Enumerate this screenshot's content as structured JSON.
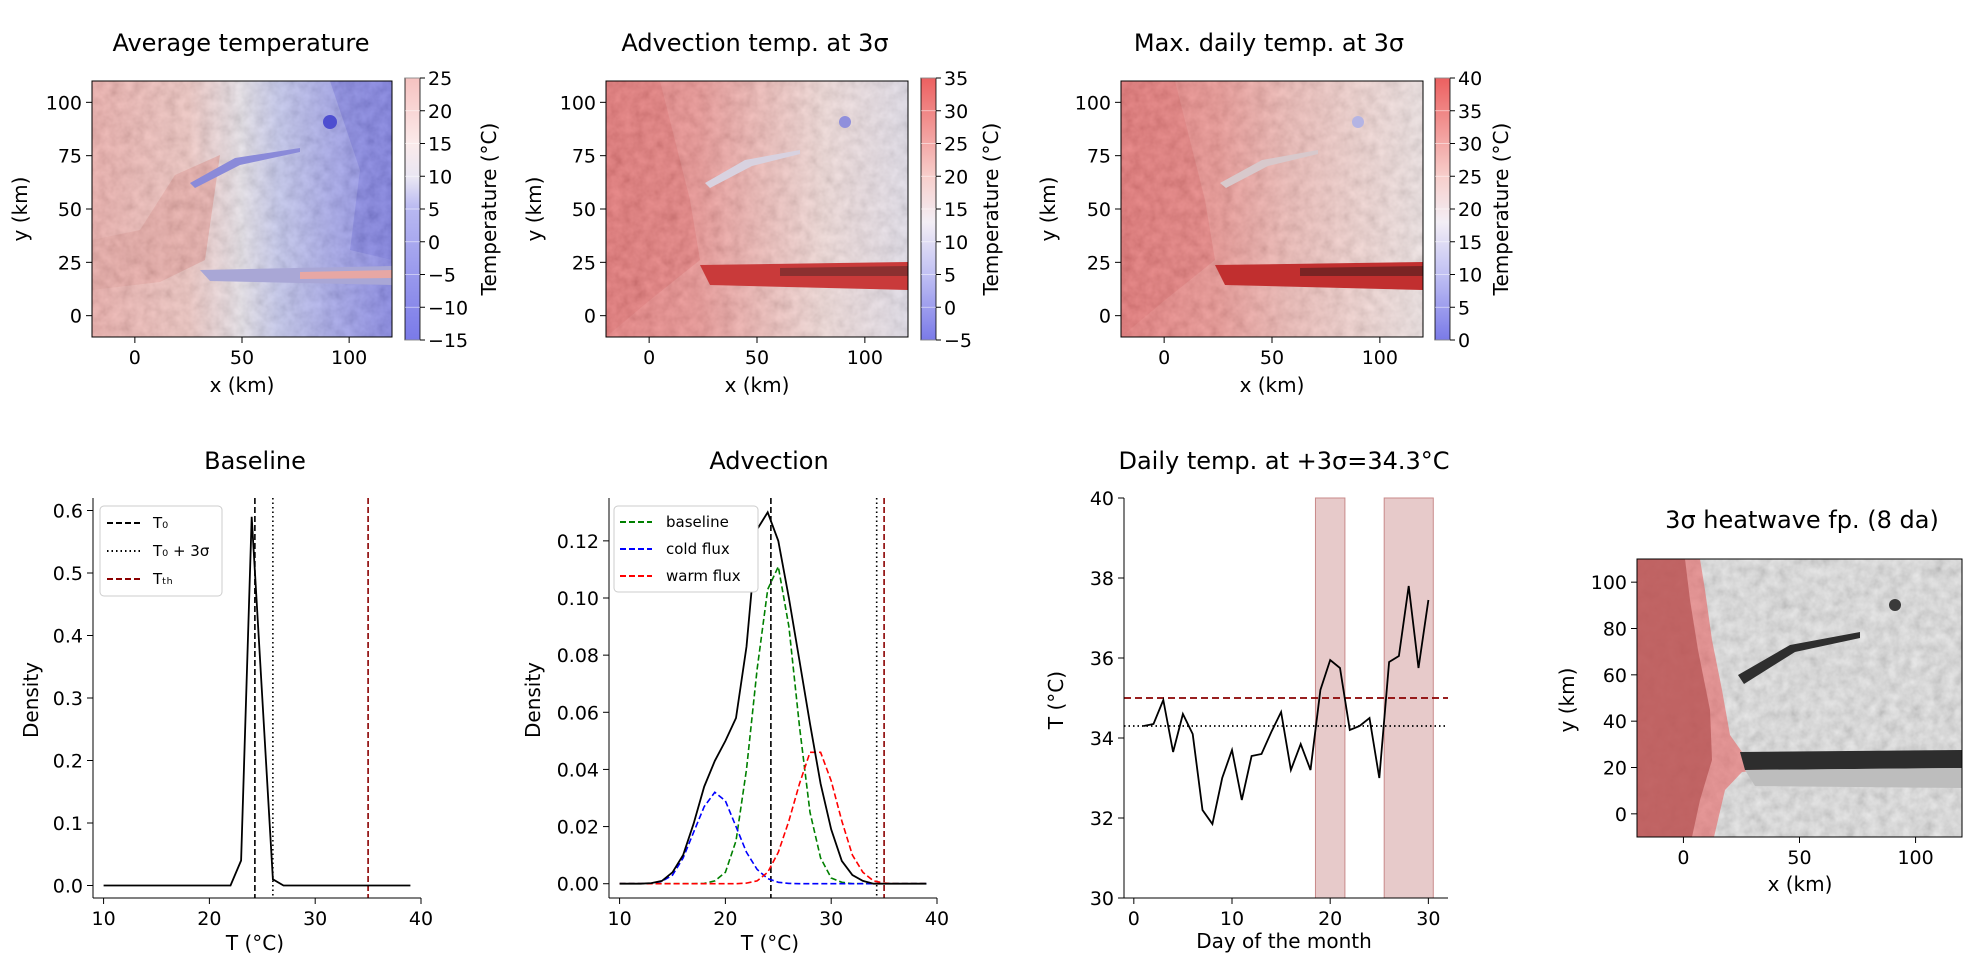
{
  "colors": {
    "terrain_dark": "#9a9a9a",
    "blue_strong": "#5555ee",
    "red_strong": "#ee5555",
    "baseline_green": "#008000",
    "cold_blue": "#0000ff",
    "warm_red": "#ff0000",
    "threshold_darkred": "#8b0000",
    "heatwave_band": "#c98a8a"
  },
  "chart_data": [
    {
      "id": "map1",
      "type": "heatmap",
      "title": "Average temperature",
      "xlabel": "x (km)",
      "ylabel": "y (km)",
      "xlim": [
        -20,
        120
      ],
      "ylim": [
        -10,
        110
      ],
      "xticks": [
        0,
        50,
        100
      ],
      "yticks": [
        0,
        25,
        50,
        75,
        100
      ],
      "colorbar": {
        "label": "Temperature (°C)",
        "min": -15,
        "max": 25,
        "ticks": [
          -15,
          -10,
          -5,
          0,
          5,
          10,
          15,
          20,
          25
        ]
      }
    },
    {
      "id": "map2",
      "type": "heatmap",
      "title": "Advection temp. at 3σ",
      "xlabel": "x (km)",
      "ylabel": "y (km)",
      "xlim": [
        -20,
        120
      ],
      "ylim": [
        -10,
        110
      ],
      "xticks": [
        0,
        50,
        100
      ],
      "yticks": [
        0,
        25,
        50,
        75,
        100
      ],
      "colorbar": {
        "label": "Temperature (°C)",
        "min": -5,
        "max": 35,
        "ticks": [
          -5,
          0,
          5,
          10,
          15,
          20,
          25,
          30,
          35
        ]
      }
    },
    {
      "id": "map3",
      "type": "heatmap",
      "title": "Max. daily temp. at 3σ",
      "xlabel": "x (km)",
      "ylabel": "y (km)",
      "xlim": [
        -20,
        120
      ],
      "ylim": [
        -10,
        110
      ],
      "xticks": [
        0,
        50,
        100
      ],
      "yticks": [
        0,
        25,
        50,
        75,
        100
      ],
      "colorbar": {
        "label": "Temperature (°C)",
        "min": 0,
        "max": 40,
        "ticks": [
          0,
          5,
          10,
          15,
          20,
          25,
          30,
          35,
          40
        ]
      }
    },
    {
      "id": "baseline",
      "type": "line",
      "title": "Baseline",
      "xlabel": "T (°C)",
      "ylabel": "Density",
      "xlim": [
        9,
        40
      ],
      "ylim": [
        -0.02,
        0.62
      ],
      "xticks": [
        10,
        20,
        30,
        40
      ],
      "yticks": [
        0.0,
        0.1,
        0.2,
        0.3,
        0.4,
        0.5,
        0.6
      ],
      "x": [
        10,
        20,
        22,
        23,
        24,
        25,
        26,
        27,
        28,
        30,
        35,
        39
      ],
      "series": [
        {
          "name": "density",
          "values": [
            0,
            0,
            0,
            0.04,
            0.59,
            0.3,
            0.01,
            0,
            0,
            0,
            0,
            0
          ]
        }
      ],
      "vlines": [
        {
          "name": "T0",
          "x": 24.3
        },
        {
          "name": "T0+3σ",
          "x": 26.0
        },
        {
          "name": "Tth",
          "x": 35.0
        }
      ],
      "legend": [
        "T₀",
        "T₀ + 3σ",
        "Tₜₕ"
      ],
      "legend_position": "top-left"
    },
    {
      "id": "advection",
      "type": "line",
      "title": "Advection",
      "xlabel": "T (°C)",
      "ylabel": "Density",
      "xlim": [
        9,
        40
      ],
      "ylim": [
        -0.005,
        0.135
      ],
      "xticks": [
        10,
        20,
        30,
        40
      ],
      "yticks": [
        0.0,
        0.02,
        0.04,
        0.06,
        0.08,
        0.1,
        0.12
      ],
      "x": [
        10,
        11,
        12,
        13,
        14,
        15,
        16,
        17,
        18,
        19,
        20,
        21,
        22,
        23,
        24,
        25,
        26,
        27,
        28,
        29,
        30,
        31,
        32,
        33,
        34,
        35,
        36,
        37,
        38,
        39
      ],
      "series": [
        {
          "name": "baseline",
          "values": [
            0,
            0,
            0,
            0,
            0,
            0,
            0,
            0,
            0.0001,
            0.001,
            0.004,
            0.015,
            0.04,
            0.075,
            0.103,
            0.111,
            0.09,
            0.055,
            0.025,
            0.009,
            0.002,
            0.0005,
            0,
            0,
            0,
            0,
            0,
            0,
            0,
            0
          ]
        },
        {
          "name": "cold flux",
          "values": [
            0,
            0,
            0,
            0.0001,
            0.0008,
            0.003,
            0.009,
            0.018,
            0.027,
            0.032,
            0.029,
            0.02,
            0.011,
            0.005,
            0.0018,
            0.0005,
            0.0001,
            0,
            0,
            0,
            0,
            0,
            0,
            0,
            0,
            0,
            0,
            0,
            0,
            0
          ]
        },
        {
          "name": "warm flux",
          "values": [
            0,
            0,
            0,
            0,
            0,
            0,
            0,
            0,
            0,
            0,
            0,
            0,
            0.0002,
            0.001,
            0.004,
            0.011,
            0.022,
            0.035,
            0.046,
            0.046,
            0.036,
            0.022,
            0.01,
            0.004,
            0.001,
            0.0002,
            0,
            0,
            0,
            0
          ]
        },
        {
          "name": "total",
          "values": [
            0,
            0,
            0,
            0.0002,
            0.001,
            0.004,
            0.01,
            0.021,
            0.034,
            0.043,
            0.05,
            0.058,
            0.083,
            0.124,
            0.13,
            0.12,
            0.1,
            0.078,
            0.056,
            0.035,
            0.019,
            0.008,
            0.003,
            0.001,
            0,
            0,
            0,
            0,
            0,
            0
          ]
        }
      ],
      "vlines": [
        {
          "name": "T0",
          "x": 24.3
        },
        {
          "name": "T0+3σ",
          "x": 34.3
        },
        {
          "name": "Tth",
          "x": 35.0
        }
      ],
      "legend": [
        "baseline",
        "cold flux",
        "warm flux"
      ],
      "legend_position": "top-left"
    },
    {
      "id": "daily",
      "type": "line",
      "title": "Daily temp. at +3σ=34.3°C",
      "xlabel": "Day of the month",
      "ylabel": "T (°C)",
      "xlim": [
        -1,
        32
      ],
      "ylim": [
        30,
        40
      ],
      "xticks": [
        0,
        10,
        20,
        30
      ],
      "yticks": [
        30,
        32,
        34,
        36,
        38,
        40
      ],
      "x": [
        1,
        2,
        3,
        4,
        5,
        6,
        7,
        8,
        9,
        10,
        11,
        12,
        13,
        14,
        15,
        16,
        17,
        18,
        19,
        20,
        21,
        22,
        23,
        24,
        25,
        26,
        27,
        28,
        29,
        30
      ],
      "series": [
        {
          "name": "daily temperature",
          "values": [
            34.3,
            34.35,
            34.95,
            33.65,
            34.6,
            34.1,
            32.2,
            31.85,
            33.0,
            33.7,
            32.45,
            33.55,
            33.6,
            34.15,
            34.65,
            33.2,
            33.85,
            33.2,
            35.2,
            35.95,
            35.75,
            34.2,
            34.3,
            34.5,
            33.0,
            35.9,
            36.05,
            37.8,
            35.75,
            37.45
          ]
        }
      ],
      "hlines": [
        {
          "name": "threshold",
          "y": 35.0
        },
        {
          "name": "3σ",
          "y": 34.3
        }
      ],
      "bands": [
        [
          18.5,
          21.5
        ],
        [
          25.5,
          30.5
        ]
      ]
    },
    {
      "id": "map4",
      "type": "heatmap",
      "title": "3σ heatwave fp. (8 da)",
      "xlabel": "x (km)",
      "ylabel": "y (km)",
      "xlim": [
        -20,
        120
      ],
      "ylim": [
        -10,
        110
      ],
      "xticks": [
        0,
        50,
        100
      ],
      "yticks": [
        0,
        20,
        40,
        60,
        80,
        100
      ]
    }
  ]
}
